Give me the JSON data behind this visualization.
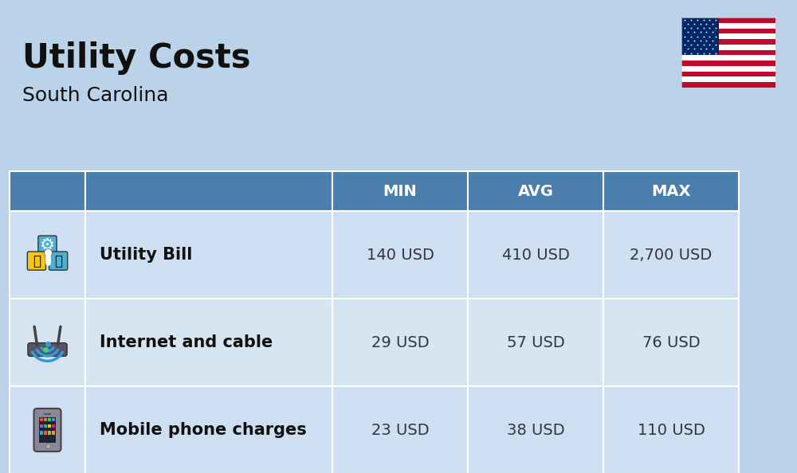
{
  "title": "Utility Costs",
  "subtitle": "South Carolina",
  "background_color": "#bad3e8",
  "header_color": "#4a7fad",
  "header_text_color": "#ffffff",
  "row_color_1": "#cddff0",
  "row_color_2": "#d5e6f2",
  "text_color": "#111111",
  "data_text_color": "#333344",
  "headers": [
    "MIN",
    "AVG",
    "MAX"
  ],
  "rows": [
    {
      "label": "Utility Bill",
      "min": "140 USD",
      "avg": "410 USD",
      "max": "2,700 USD",
      "icon": "utility"
    },
    {
      "label": "Internet and cable",
      "min": "29 USD",
      "avg": "57 USD",
      "max": "76 USD",
      "icon": "internet"
    },
    {
      "label": "Mobile phone charges",
      "min": "23 USD",
      "avg": "38 USD",
      "max": "110 USD",
      "icon": "mobile"
    }
  ],
  "title_fontsize": 30,
  "subtitle_fontsize": 18,
  "header_fontsize": 14,
  "cell_fontsize": 14,
  "label_fontsize": 15
}
